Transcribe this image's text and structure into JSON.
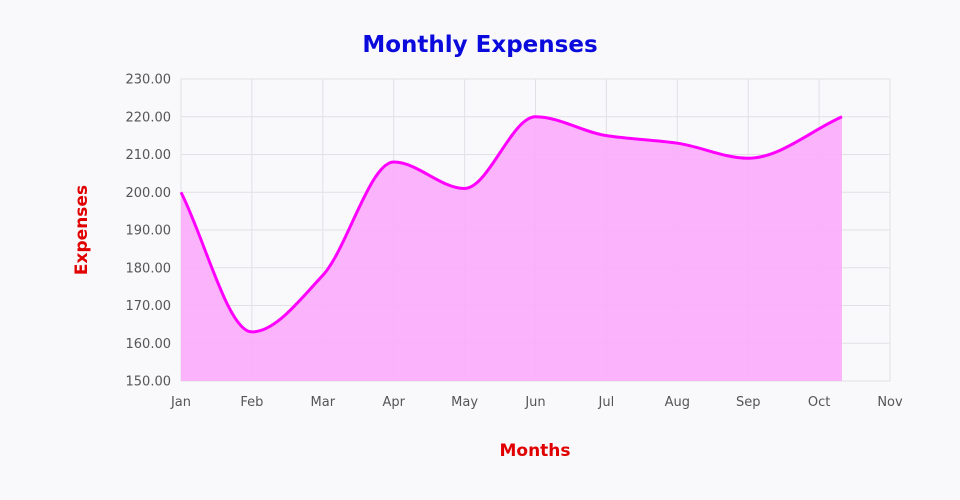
{
  "chart_data": {
    "type": "area",
    "title": "Monthly Expenses",
    "xlabel": "Months",
    "ylabel": "Expenses",
    "x_ticks": [
      "Jan",
      "Feb",
      "Mar",
      "Apr",
      "May",
      "Jun",
      "Jul",
      "Aug",
      "Sep",
      "Oct",
      "Nov"
    ],
    "y_ticks": [
      "150.00",
      "160.00",
      "170.00",
      "180.00",
      "190.00",
      "200.00",
      "210.00",
      "220.00",
      "230.00"
    ],
    "ylim": [
      150,
      230
    ],
    "grid": true,
    "series": [
      {
        "x": [
          "2024-01-01",
          "2024-02-01",
          "2024-03-01",
          "2024-04-01",
          "2024-05-01",
          "2024-06-01",
          "2024-07-01",
          "2024-08-01",
          "2024-09-01",
          "2024-10-11"
        ],
        "values": [
          200,
          163,
          178,
          208,
          201,
          220,
          215,
          213,
          209,
          220
        ]
      }
    ]
  },
  "colors": {
    "title": "#0a0adc",
    "axis_title": "#e00000",
    "line": "#ff00ff",
    "fill": "#fbadfb"
  }
}
